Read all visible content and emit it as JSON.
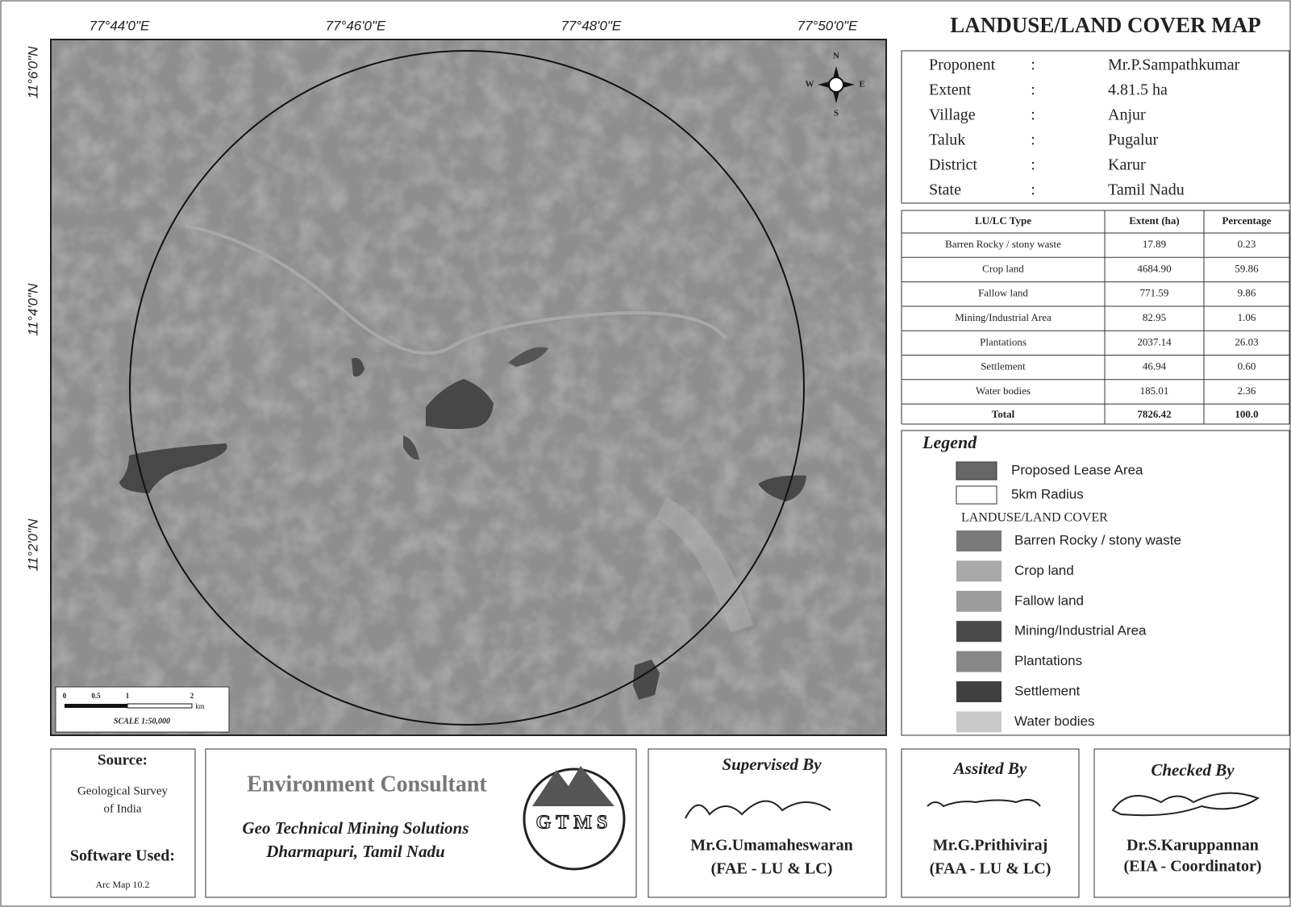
{
  "map": {
    "lon_labels": [
      "77°44'0\"E",
      "77°46'0\"E",
      "77°48'0\"E",
      "77°50'0\"E"
    ],
    "lat_labels": [
      "11°6'0\"N",
      "11°4'0\"N",
      "11°2'0\"N"
    ],
    "compass": {
      "n": "N",
      "s": "S",
      "e": "E",
      "w": "W"
    },
    "scale_bar": {
      "ticks": [
        "0",
        "0.5",
        "1",
        "2"
      ],
      "unit": "km",
      "text": "SCALE 1:50,000"
    }
  },
  "title": "LANDUSE/LAND COVER MAP",
  "info": {
    "separator": ":",
    "rows": [
      [
        "Proponent",
        "Mr.P.Sampathkumar"
      ],
      [
        "Extent",
        "4.81.5 ha"
      ],
      [
        "Village",
        "Anjur"
      ],
      [
        "Taluk",
        "Pugalur"
      ],
      [
        "District",
        "Karur"
      ],
      [
        "State",
        "Tamil Nadu"
      ]
    ]
  },
  "table": {
    "header": [
      "LU/LC Type",
      "Extent (ha)",
      "Percentage"
    ],
    "rows": [
      [
        "Barren Rocky / stony waste",
        "17.89",
        "0.23"
      ],
      [
        "Crop land",
        "4684.90",
        "59.86"
      ],
      [
        "Fallow land",
        "771.59",
        "9.86"
      ],
      [
        "Mining/Industrial Area",
        "82.95",
        "1.06"
      ],
      [
        "Plantations",
        "2037.14",
        "26.03"
      ],
      [
        "Settlement",
        "46.94",
        "0.60"
      ],
      [
        "Water bodies",
        "185.01",
        "2.36"
      ]
    ],
    "total": [
      "Total",
      "7826.42",
      "100.0"
    ]
  },
  "legend": {
    "title": "Legend",
    "items": [
      {
        "label": "Proposed Lease Area",
        "color": "#666666"
      },
      {
        "label": "5km Radius",
        "color": "#ffffff"
      }
    ],
    "subtitle": "LANDUSE/LAND COVER",
    "classes": [
      {
        "label": "Barren Rocky / stony waste",
        "color": "#7a7a7a"
      },
      {
        "label": "Crop land",
        "color": "#a9a9a9"
      },
      {
        "label": "Fallow land",
        "color": "#9d9d9d"
      },
      {
        "label": "Mining/Industrial Area",
        "color": "#4a4a4a"
      },
      {
        "label": "Plantations",
        "color": "#878787"
      },
      {
        "label": "Settlement",
        "color": "#404040"
      },
      {
        "label": "Water bodies",
        "color": "#c9c9c9"
      }
    ]
  },
  "footer": {
    "source": {
      "heading": "Source:",
      "lines": [
        "Geological Survey",
        "of India"
      ],
      "software_heading": "Software Used:",
      "software": "Arc Map 10.2"
    },
    "consultant": {
      "title": "Environment Consultant",
      "line1": "Geo Technical Mining Solutions",
      "line2": "Dharmapuri, Tamil Nadu",
      "logo": "GTMS"
    },
    "supervised": {
      "heading": "Supervised By",
      "name": "Mr.G.Umamaheswaran",
      "role": "(FAE - LU & LC)"
    },
    "assisted": {
      "heading": "Assited By",
      "name": "Mr.G.Prithiviraj",
      "role": "(FAA - LU & LC)"
    },
    "checked": {
      "heading": "Checked By",
      "name": "Dr.S.Karuppannan",
      "role": "(EIA - Coordinator)"
    }
  }
}
